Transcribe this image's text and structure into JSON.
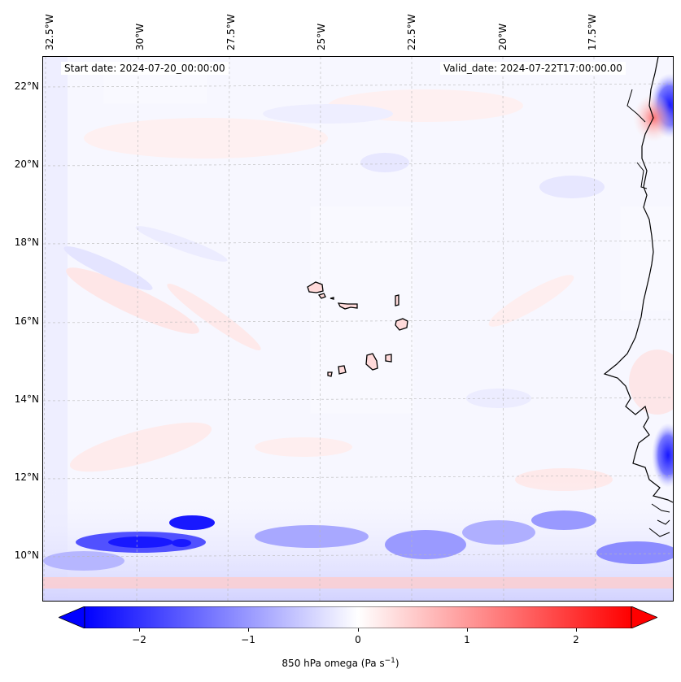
{
  "map": {
    "start_date_text": "Start date: 2024-07-20_00:00:00",
    "valid_date_text": "Valid_date: 2024-07-22T17:00:00.00",
    "lon_labels": [
      "32.5°W",
      "30°W",
      "27.5°W",
      "25°W",
      "22.5°W",
      "20°W",
      "17.5°W"
    ],
    "lat_labels": [
      "22°N",
      "20°N",
      "18°N",
      "16°N",
      "14°N",
      "12°N",
      "10°N"
    ],
    "colors": {
      "negative": "#0000ff",
      "zero": "#ffffff",
      "positive": "#ff0000",
      "coast": "#000000"
    }
  },
  "colorbar": {
    "ticks": [
      "−2",
      "−1",
      "0",
      "1",
      "2"
    ],
    "label_main": "850 hPa omega (Pa s",
    "label_sup": "−1",
    "label_end": ")"
  }
}
